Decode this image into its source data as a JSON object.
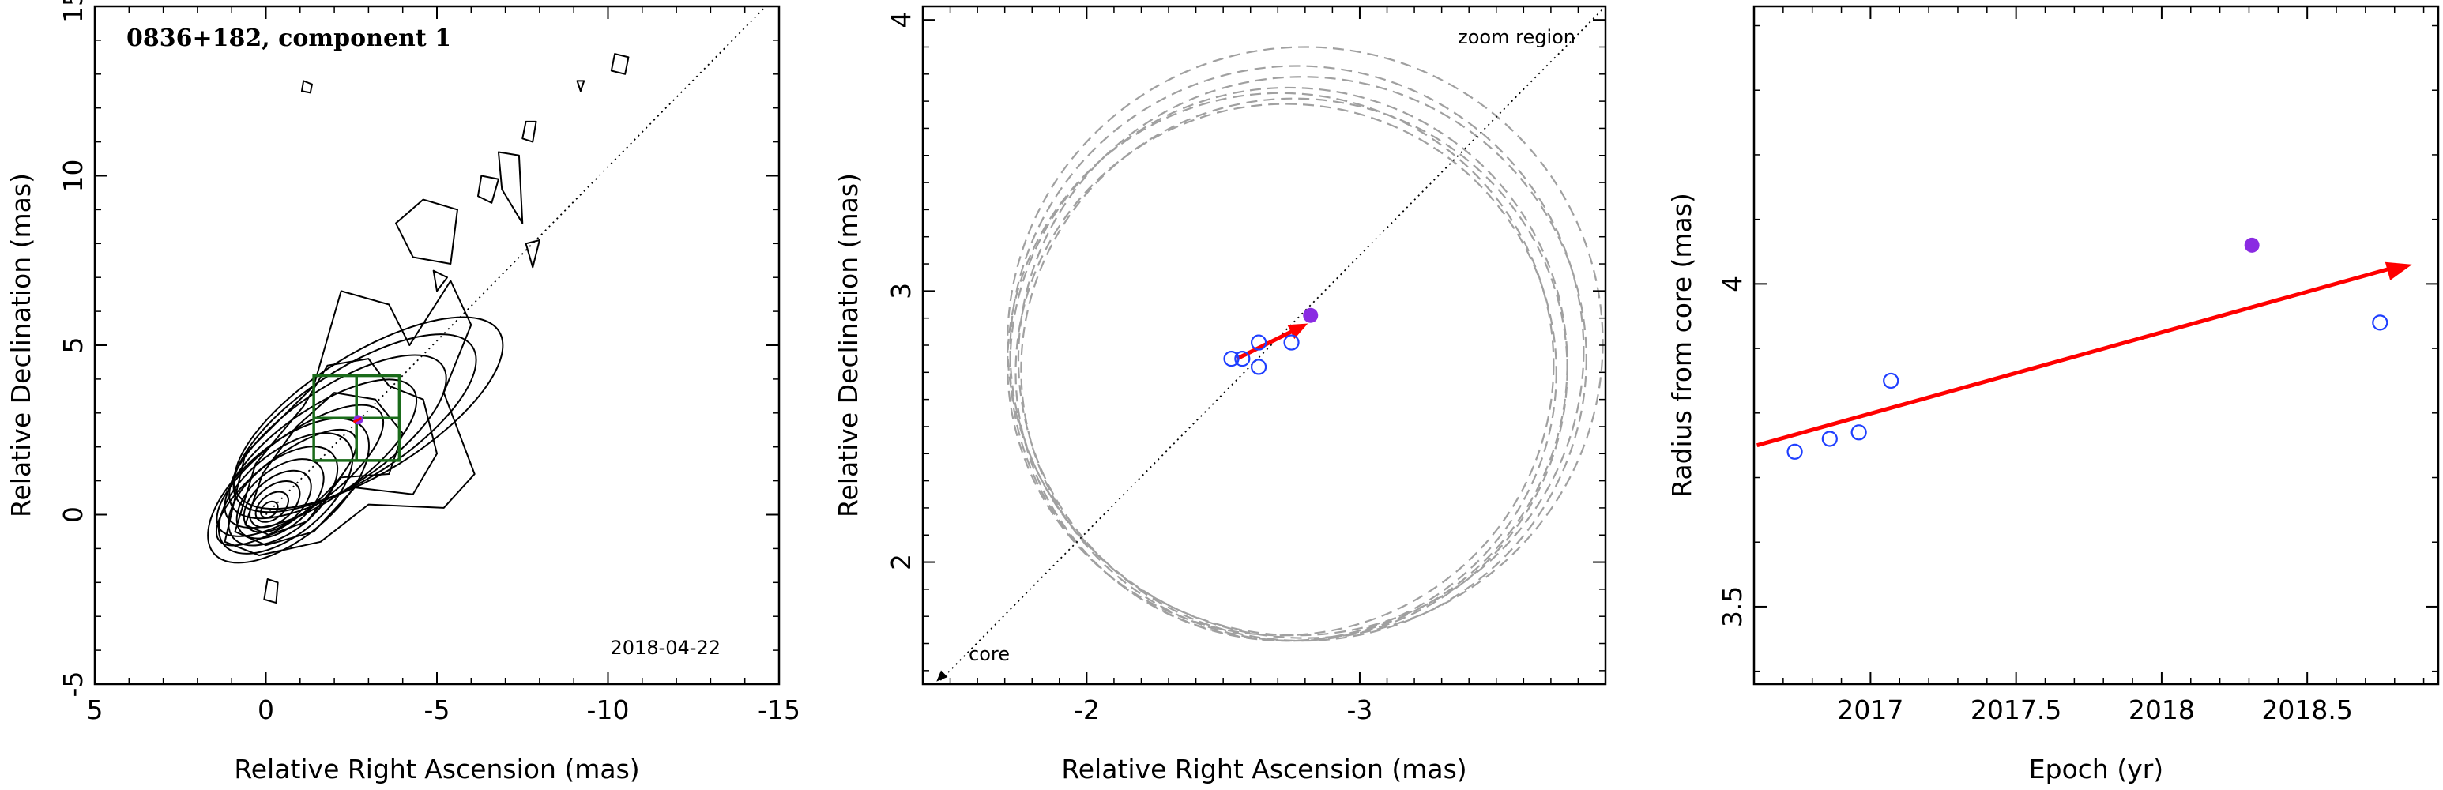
{
  "chart_data": [
    {
      "type": "contour",
      "title": "0836+182, component 1",
      "date_label": "2018-04-22",
      "xlabel": "Relative Right Ascension (mas)",
      "ylabel": "Relative Declination (mas)",
      "xlim": [
        5,
        -15
      ],
      "ylim": [
        -5,
        15
      ],
      "xticks": [
        5,
        0,
        -5,
        -10,
        -15
      ],
      "yticks": [
        -5,
        0,
        5,
        10,
        15
      ],
      "jet_axis_line": {
        "from": [
          0,
          0
        ],
        "to": [
          -15.2,
          15.6
        ]
      },
      "zoom_box": {
        "x": [
          -1.4,
          -3.9
        ],
        "y": [
          1.6,
          4.1
        ]
      },
      "component_position": [
        -2.7,
        2.8
      ],
      "colors": {
        "contour": "#000000",
        "zoom_box": "#1a6b1a",
        "component": "#8a2be2",
        "motion": "#ff0000"
      }
    },
    {
      "type": "scatter",
      "xlabel": "Relative Right Ascension (mas)",
      "ylabel": "Relative Declination (mas)",
      "xlim": [
        -1.4,
        -3.9
      ],
      "ylim": [
        1.55,
        4.05
      ],
      "xticks": [
        -2,
        -3
      ],
      "yticks": [
        2,
        3,
        4
      ],
      "annotations": {
        "zoom": "zoom region",
        "core": "core"
      },
      "points_open": [
        {
          "x": -2.53,
          "y": 2.75
        },
        {
          "x": -2.57,
          "y": 2.75
        },
        {
          "x": -2.63,
          "y": 2.81
        },
        {
          "x": -2.63,
          "y": 2.72
        },
        {
          "x": -2.75,
          "y": 2.81
        }
      ],
      "point_filled": {
        "x": -2.82,
        "y": 2.91
      },
      "motion_vector": {
        "from": [
          -2.55,
          2.75
        ],
        "to": [
          -2.81,
          2.88
        ]
      },
      "uncertainty_circles": [
        {
          "cx": -2.8,
          "cy": 2.81,
          "r": 1.09
        },
        {
          "cx": -2.77,
          "cy": 2.78,
          "r": 1.05
        },
        {
          "cx": -2.79,
          "cy": 2.75,
          "r": 1.04
        },
        {
          "cx": -2.76,
          "cy": 2.71,
          "r": 1.0
        },
        {
          "cx": -2.74,
          "cy": 2.73,
          "r": 1.02
        },
        {
          "cx": -2.73,
          "cy": 2.7,
          "r": 0.99
        },
        {
          "cx": -2.71,
          "cy": 2.73,
          "r": 1.0
        }
      ],
      "colors": {
        "open_points": "#1f3fff",
        "filled_point": "#8a2be2",
        "arrow": "#ff0000",
        "circles": "#a0a0a0"
      }
    },
    {
      "type": "scatter",
      "xlabel": "Epoch (yr)",
      "ylabel": "Radius from core (mas)",
      "xlim": [
        16.6,
        18.95
      ],
      "ylim": [
        3.38,
        4.43
      ],
      "xticks": [
        17,
        17.5,
        18,
        18.5
      ],
      "xtick_labels": [
        "2017",
        "2017.5",
        "2018",
        "2018.5"
      ],
      "yticks": [
        3.5,
        4
      ],
      "points_open": [
        {
          "x": 16.74,
          "y": 3.74
        },
        {
          "x": 16.86,
          "y": 3.76
        },
        {
          "x": 16.96,
          "y": 3.77
        },
        {
          "x": 17.07,
          "y": 3.85
        },
        {
          "x": 18.75,
          "y": 3.94
        }
      ],
      "point_filled": {
        "x": 18.31,
        "y": 4.06
      },
      "trend_arrow": {
        "from": [
          16.61,
          3.75
        ],
        "to": [
          18.86,
          4.03
        ]
      },
      "colors": {
        "open_points": "#1f3fff",
        "filled_point": "#8a2be2",
        "arrow": "#ff0000"
      }
    }
  ]
}
